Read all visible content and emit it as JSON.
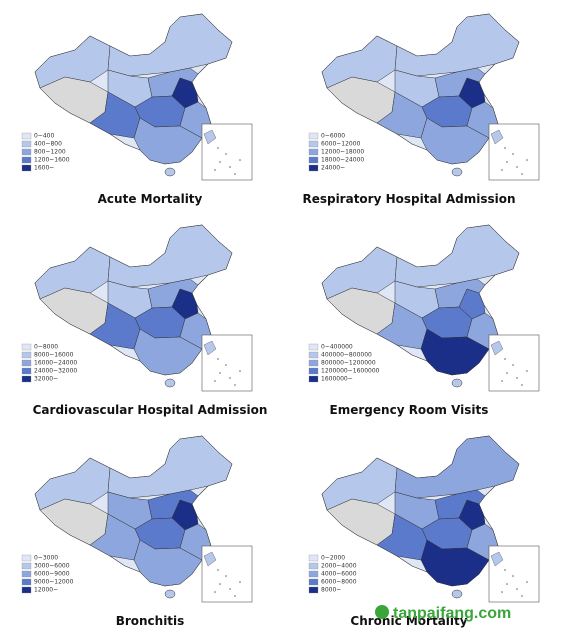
{
  "panels": [
    {
      "title": "Acute Mortality",
      "legend": [
        "0~400",
        "400~800",
        "800~1200",
        "1200~1600",
        "1600~"
      ]
    },
    {
      "title": "Respiratory Hospital Admission",
      "legend": [
        "0~6000",
        "6000~12000",
        "12000~18000",
        "18000~24000",
        "24000~"
      ]
    },
    {
      "title": "Cardiovascular Hospital Admission",
      "legend": [
        "0~8000",
        "8000~16000",
        "16000~24000",
        "24000~32000",
        "32000~"
      ]
    },
    {
      "title": "Emergency Room Visits",
      "legend": [
        "0~400000",
        "400000~800000",
        "800000~1200000",
        "1200000~1600000",
        "1600000~"
      ]
    },
    {
      "title": "Bronchitis",
      "legend": [
        "0~3000",
        "3000~6000",
        "6000~9000",
        "9000~12000",
        "12000~"
      ]
    },
    {
      "title": "Chronic Mortality",
      "legend": [
        "0~2000",
        "2000~4000",
        "4000~6000",
        "6000~8000",
        "8000~"
      ]
    }
  ],
  "watermark": "tanpaifang.com"
}
